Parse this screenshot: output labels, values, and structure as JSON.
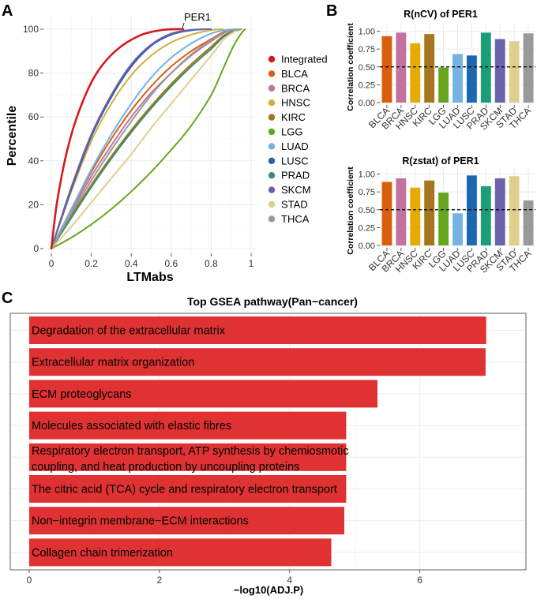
{
  "panels": {
    "a": "A",
    "b": "B",
    "c": "C"
  },
  "chart_data": [
    {
      "id": "cdf",
      "type": "line",
      "title": "",
      "xlabel": "LTMabs",
      "ylabel": "Percentile",
      "xlim": [
        0,
        1
      ],
      "ylim": [
        0,
        100
      ],
      "xticks": [
        "0",
        "0.2",
        "0.4",
        "0.6",
        "0.8",
        "1"
      ],
      "yticks": [
        "0",
        "20",
        "40",
        "60",
        "80",
        "100"
      ],
      "annotation": "PER1",
      "legend_position": "right",
      "series": [
        {
          "name": "Integrated",
          "color": "#d7191c",
          "x": [
            0,
            0.03,
            0.08,
            0.14,
            0.22,
            0.32,
            0.44,
            0.56,
            0.66
          ],
          "y": [
            0,
            22,
            45,
            63,
            79,
            90,
            97,
            99.7,
            100
          ]
        },
        {
          "name": "BLCA",
          "color": "#d95f0e",
          "x": [
            0,
            0.1,
            0.2,
            0.3,
            0.4,
            0.5,
            0.6,
            0.7,
            0.8,
            0.87,
            0.93
          ],
          "y": [
            0,
            18,
            35,
            50,
            63,
            74,
            83,
            90,
            95.5,
            99,
            100
          ]
        },
        {
          "name": "BRCA",
          "color": "#c2729f",
          "x": [
            0,
            0.1,
            0.2,
            0.3,
            0.4,
            0.5,
            0.6,
            0.7,
            0.8,
            0.87,
            0.94
          ],
          "y": [
            0,
            17,
            33,
            47,
            60,
            71,
            80,
            88,
            94.5,
            98.5,
            100
          ]
        },
        {
          "name": "HNSC",
          "color": "#d4ae3c",
          "x": [
            0,
            0.1,
            0.2,
            0.3,
            0.4,
            0.5,
            0.6,
            0.7,
            0.8,
            0.86
          ],
          "y": [
            0,
            26,
            49,
            66,
            79,
            88,
            94,
            97.5,
            99.6,
            100
          ]
        },
        {
          "name": "KIRC",
          "color": "#a6761d",
          "x": [
            0,
            0.1,
            0.2,
            0.3,
            0.4,
            0.5,
            0.6,
            0.7,
            0.8,
            0.87,
            0.95
          ],
          "y": [
            0,
            15,
            29,
            42,
            54,
            65,
            75,
            84,
            92,
            97.5,
            100
          ]
        },
        {
          "name": "LGG",
          "color": "#66a61e",
          "x": [
            0,
            0.1,
            0.2,
            0.3,
            0.4,
            0.5,
            0.6,
            0.7,
            0.8,
            0.86,
            0.91,
            0.95,
            0.97
          ],
          "y": [
            0,
            5,
            11,
            18,
            26,
            35,
            45,
            56,
            70,
            82,
            92,
            98,
            100
          ]
        },
        {
          "name": "LUAD",
          "color": "#74b3e3",
          "x": [
            0,
            0.1,
            0.2,
            0.3,
            0.4,
            0.5,
            0.6,
            0.7,
            0.8,
            0.87,
            0.93
          ],
          "y": [
            0,
            18,
            36,
            52,
            66,
            78,
            87,
            93.5,
            98,
            99.6,
            100
          ]
        },
        {
          "name": "LUSC",
          "color": "#2c5fa3",
          "x": [
            0,
            0.1,
            0.2,
            0.3,
            0.4,
            0.5,
            0.6,
            0.7,
            0.78
          ],
          "y": [
            0,
            27,
            51,
            69,
            83,
            92.5,
            97.5,
            99.5,
            100
          ]
        },
        {
          "name": "PRAD",
          "color": "#3a8f6e",
          "x": [
            0,
            0.1,
            0.2,
            0.3,
            0.4,
            0.5,
            0.6,
            0.7,
            0.8,
            0.87,
            0.95
          ],
          "y": [
            0,
            14,
            28,
            41,
            53,
            64,
            74,
            83,
            91,
            97,
            100
          ]
        },
        {
          "name": "SKCM",
          "color": "#6c61ad",
          "x": [
            0,
            0.1,
            0.2,
            0.3,
            0.4,
            0.5,
            0.6,
            0.7,
            0.8
          ],
          "y": [
            0,
            28,
            52,
            70,
            84,
            93,
            98,
            99.7,
            100
          ]
        },
        {
          "name": "STAD",
          "color": "#e0cf8c",
          "x": [
            0,
            0.1,
            0.2,
            0.3,
            0.4,
            0.5,
            0.6,
            0.7,
            0.8,
            0.87,
            0.94
          ],
          "y": [
            0,
            10,
            21,
            32,
            43,
            55,
            66,
            77,
            88,
            96,
            100
          ]
        },
        {
          "name": "THCA",
          "color": "#999999",
          "x": [
            0,
            0.1,
            0.2,
            0.3,
            0.4,
            0.5,
            0.6,
            0.7,
            0.8,
            0.88,
            0.95
          ],
          "y": [
            0,
            16,
            31,
            45,
            58,
            70,
            80,
            88.5,
            95,
            99,
            100
          ]
        }
      ]
    },
    {
      "id": "ncv",
      "type": "bar",
      "title": "R(nCV) of PER1",
      "xlabel": "",
      "ylabel": "Correlation coefficient",
      "ylim": [
        0,
        1.05
      ],
      "yticks": [
        "0.00",
        "0.25",
        "0.50",
        "0.75",
        "1.00"
      ],
      "reference_line": 0.5,
      "categories": [
        "BLCA",
        "BRCA",
        "HNSC",
        "KIRC",
        "LGG",
        "LUAD",
        "LUSC",
        "PRAD",
        "SKCM",
        "STAD",
        "THCA"
      ],
      "values": [
        0.93,
        0.98,
        0.83,
        0.96,
        0.49,
        0.68,
        0.66,
        0.98,
        0.89,
        0.86,
        0.97
      ],
      "colors": [
        "#d95f0e",
        "#c2729f",
        "#e6ab02",
        "#a6761d",
        "#66a61e",
        "#74b3e3",
        "#1f68ae",
        "#1b9e77",
        "#6c61ad",
        "#e0cf8c",
        "#999999"
      ]
    },
    {
      "id": "zstat",
      "type": "bar",
      "title": "R(zstat) of PER1",
      "xlabel": "",
      "ylabel": "Correlation coefficient",
      "ylim": [
        0,
        1.05
      ],
      "yticks": [
        "0.00",
        "0.25",
        "0.50",
        "0.75",
        "1.00"
      ],
      "reference_line": 0.5,
      "categories": [
        "BLCA",
        "BRCA",
        "HNSC",
        "KIRC",
        "LGG",
        "LUAD",
        "LUSC",
        "PRAD",
        "SKCM",
        "STAD",
        "THCA"
      ],
      "values": [
        0.89,
        0.94,
        0.81,
        0.91,
        0.74,
        0.45,
        0.98,
        0.83,
        0.94,
        0.97,
        0.63
      ],
      "colors": [
        "#d95f0e",
        "#c2729f",
        "#e6ab02",
        "#a6761d",
        "#66a61e",
        "#74b3e3",
        "#1f68ae",
        "#1b9e77",
        "#6c61ad",
        "#e0cf8c",
        "#999999"
      ]
    },
    {
      "id": "gsea",
      "type": "bar",
      "orientation": "horizontal",
      "title": "Top GSEA pathway(Pan−cancer)",
      "xlabel": "−log10(ADJ.P)",
      "ylabel": "",
      "xlim": [
        0,
        7.4
      ],
      "xticks": [
        "0",
        "2",
        "4",
        "6"
      ],
      "bar_color": "#e03232",
      "categories": [
        [
          "Degradation of the extracellular matrix"
        ],
        [
          "Extracellular matrix organization"
        ],
        [
          "ECM proteoglycans"
        ],
        [
          "Molecules associated with elastic fibres"
        ],
        [
          "Respiratory electron transport, ATP synthesis by chemiosmotic",
          "coupling, and heat production by uncoupling proteins"
        ],
        [
          "The citric acid (TCA) cycle and respiratory electron transport"
        ],
        [
          "Non−integrin membrane−ECM interactions"
        ],
        [
          "Collagen chain trimerization"
        ]
      ],
      "values": [
        7.02,
        7.01,
        5.35,
        4.87,
        4.87,
        4.87,
        4.84,
        4.64
      ]
    }
  ]
}
